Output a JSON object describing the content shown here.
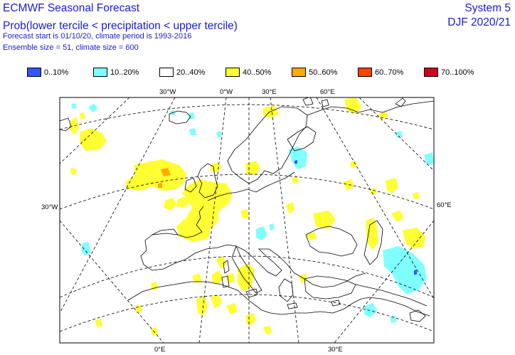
{
  "header": {
    "title": "ECMWF Seasonal Forecast",
    "subtitle": "Prob(lower tercile < precipitation < upper tercile)",
    "forecast_info": "Forecast start is 01/10/20, climate period is 1993-2016",
    "ensemble_info": "Ensemble size = 51, climate size = 600",
    "system": "System 5",
    "season": "DJF 2020/21"
  },
  "legend": [
    {
      "label": "0..10%",
      "color": "#3355ff"
    },
    {
      "label": "10..20%",
      "color": "#80ffff"
    },
    {
      "label": "20..40%",
      "color": "#ffffff"
    },
    {
      "label": "40..50%",
      "color": "#ffff33"
    },
    {
      "label": "50..60%",
      "color": "#ffaa00"
    },
    {
      "label": "60..70%",
      "color": "#ff4400"
    },
    {
      "label": "70..100%",
      "color": "#cc0022"
    }
  ],
  "graticule_labels": {
    "top": [
      "30°W",
      "0°W",
      "30°E",
      "60°E"
    ],
    "left": "30°W",
    "right": "60°E",
    "bottom": [
      "0°E",
      "30°E"
    ]
  },
  "map": {
    "projection": "polar stereographic",
    "region": "Europe / North Atlantic"
  }
}
